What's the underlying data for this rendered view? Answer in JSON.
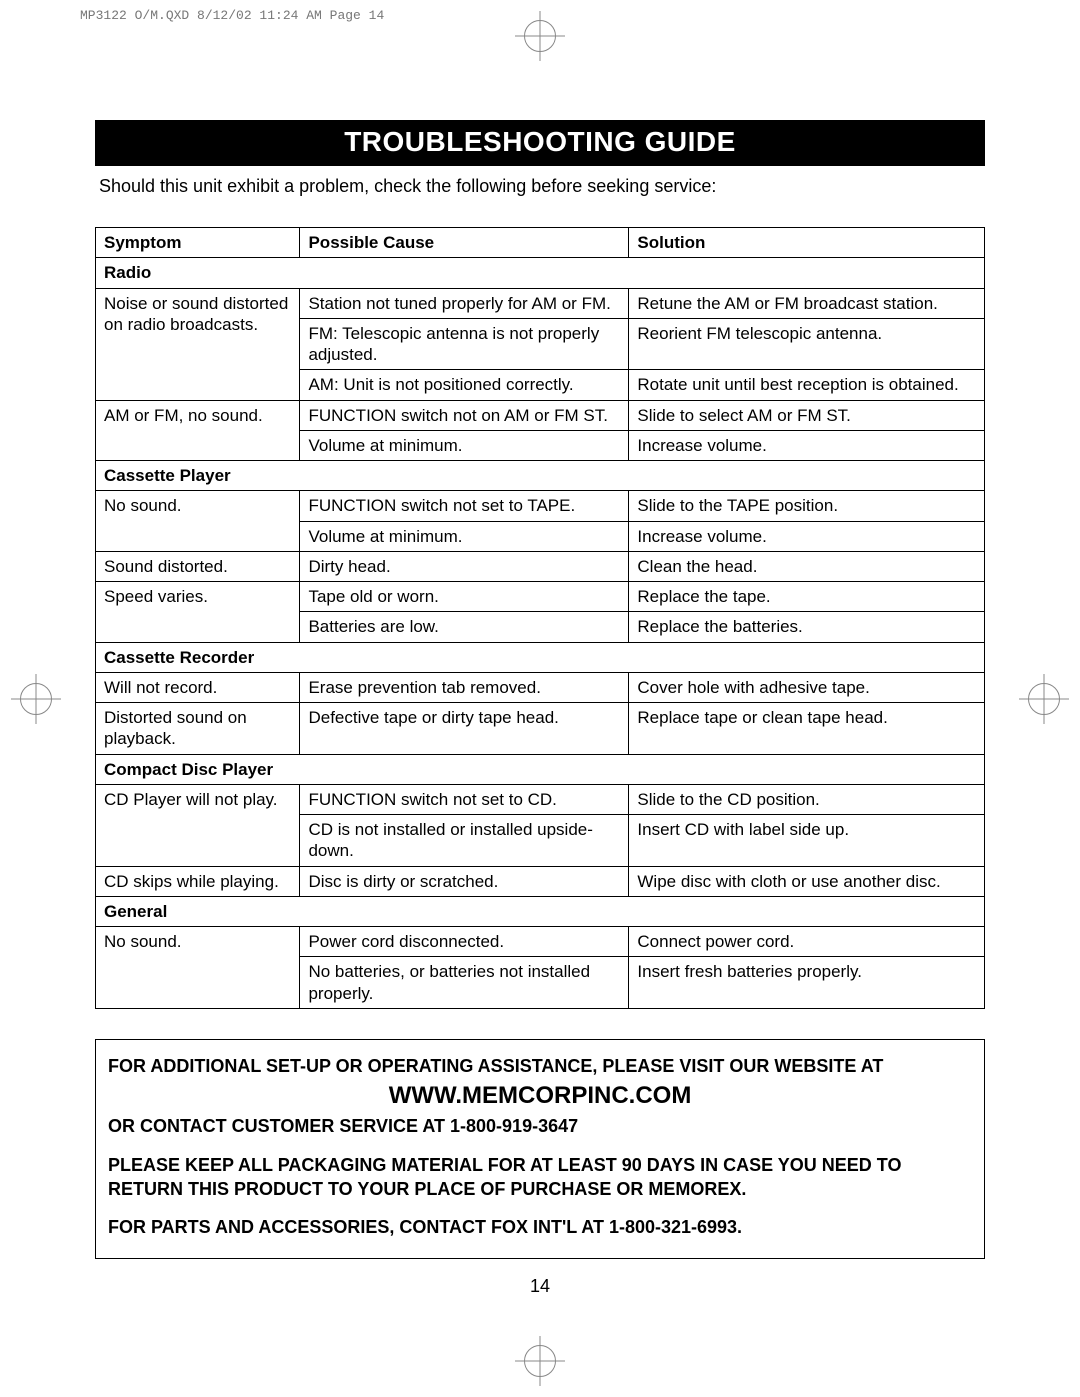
{
  "meta": {
    "headerText": "MP3122 O/M.QXD  8/12/02  11:24 AM  Page 14",
    "pageNumber": "14"
  },
  "title": "TROUBLESHOOTING GUIDE",
  "intro": "Should this unit exhibit a problem, check the following before seeking service:",
  "columns": {
    "symptom": "Symptom",
    "cause": "Possible Cause",
    "solution": "Solution"
  },
  "colWidths": {
    "symptom": "23%",
    "cause": "37%",
    "solution": "40%"
  },
  "colors": {
    "titleBg": "#000000",
    "titleText": "#ffffff",
    "border": "#000000",
    "headerGray": "#777777"
  },
  "fonts": {
    "body": "Arial, Helvetica, sans-serif",
    "headerMono": "Courier New, monospace",
    "titleSize": 28,
    "bodySize": 17,
    "introSize": 18,
    "footerSize": 18,
    "websiteSize": 24
  },
  "sections": [
    {
      "name": "Radio",
      "rows": [
        {
          "symptom": "Noise or sound distorted on radio broadcasts.",
          "cause": "Station not tuned properly for AM or FM.",
          "solution": "Retune the AM or FM broadcast station."
        },
        {
          "symptom": "",
          "cause": "FM: Telescopic antenna is not properly adjusted.",
          "solution": "Reorient FM telescopic antenna."
        },
        {
          "symptom": "",
          "cause": "AM: Unit is not positioned correctly.",
          "solution": "Rotate unit until best reception is obtained."
        },
        {
          "symptom": "AM or FM, no sound.",
          "cause": "FUNCTION switch not on AM or FM ST.",
          "solution": "Slide to select AM or FM ST."
        },
        {
          "symptom": "",
          "cause": "Volume at minimum.",
          "solution": "Increase volume."
        }
      ]
    },
    {
      "name": "Cassette Player",
      "rows": [
        {
          "symptom": "No sound.",
          "cause": "FUNCTION switch not set to TAPE.",
          "solution": "Slide to the TAPE position."
        },
        {
          "symptom": "",
          "cause": "Volume at minimum.",
          "solution": "Increase volume."
        },
        {
          "symptom": "Sound distorted.",
          "cause": "Dirty head.",
          "solution": "Clean the head."
        },
        {
          "symptom": "Speed varies.",
          "cause": "Tape old or worn.",
          "solution": "Replace the tape."
        },
        {
          "symptom": "",
          "cause": "Batteries are low.",
          "solution": "Replace the batteries."
        }
      ]
    },
    {
      "name": "Cassette Recorder",
      "rows": [
        {
          "symptom": "Will not record.",
          "cause": "Erase prevention tab removed.",
          "solution": "Cover hole with adhesive tape."
        },
        {
          "symptom": "Distorted sound on playback.",
          "cause": "Defective tape or dirty tape head.",
          "solution": "Replace tape or clean tape head."
        }
      ]
    },
    {
      "name": "Compact Disc Player",
      "rows": [
        {
          "symptom": "CD Player will not play.",
          "cause": "FUNCTION switch not set to CD.",
          "solution": "Slide to the CD position."
        },
        {
          "symptom": "",
          "cause": "CD is not installed or installed upside-down.",
          "solution": "Insert CD with label side up."
        },
        {
          "symptom": "CD skips while playing.",
          "cause": "Disc is dirty or scratched.",
          "solution": "Wipe disc with cloth or use another disc."
        }
      ]
    },
    {
      "name": "General",
      "rows": [
        {
          "symptom": "No sound.",
          "cause": "Power cord disconnected.",
          "solution": "Connect power cord."
        },
        {
          "symptom": "",
          "cause": "No batteries, or batteries not installed properly.",
          "solution": "Insert fresh batteries properly."
        }
      ]
    }
  ],
  "footer": {
    "line1": "FOR ADDITIONAL SET-UP OR OPERATING ASSISTANCE, PLEASE VISIT OUR WEBSITE AT",
    "website": "WWW.MEMCORPINC.COM",
    "line2": "OR CONTACT CUSTOMER SERVICE AT 1-800-919-3647",
    "line3": "PLEASE KEEP ALL PACKAGING MATERIAL FOR AT LEAST 90 DAYS IN CASE YOU NEED TO RETURN THIS PRODUCT  TO YOUR PLACE OF PURCHASE OR MEMOREX.",
    "line4": "FOR PARTS AND ACCESSORIES, CONTACT FOX INT'L AT 1-800-321-6993."
  }
}
